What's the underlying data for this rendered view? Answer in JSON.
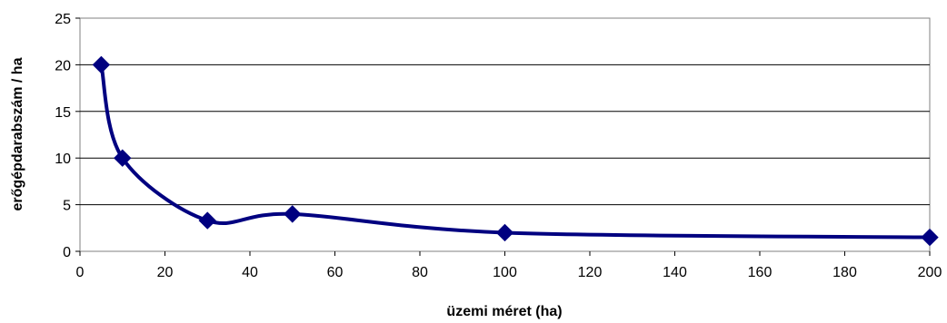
{
  "chart_data": {
    "type": "scatter",
    "title": "",
    "xlabel": "üzemi méret (ha)",
    "ylabel": "erőgépdarabszám / ha",
    "xlim": [
      0,
      200
    ],
    "ylim": [
      0,
      25
    ],
    "xticks": [
      0,
      20,
      40,
      60,
      80,
      100,
      120,
      140,
      160,
      180,
      200
    ],
    "yticks": [
      0,
      5,
      10,
      15,
      20,
      25
    ],
    "grid": "horizontal",
    "legend": "none",
    "smoothed": true,
    "series": [
      {
        "color": "#000080",
        "marker": "diamond",
        "x": [
          5,
          10,
          30,
          50,
          100,
          200
        ],
        "y": [
          20,
          10,
          3.3,
          4,
          2,
          1.5
        ]
      }
    ]
  }
}
